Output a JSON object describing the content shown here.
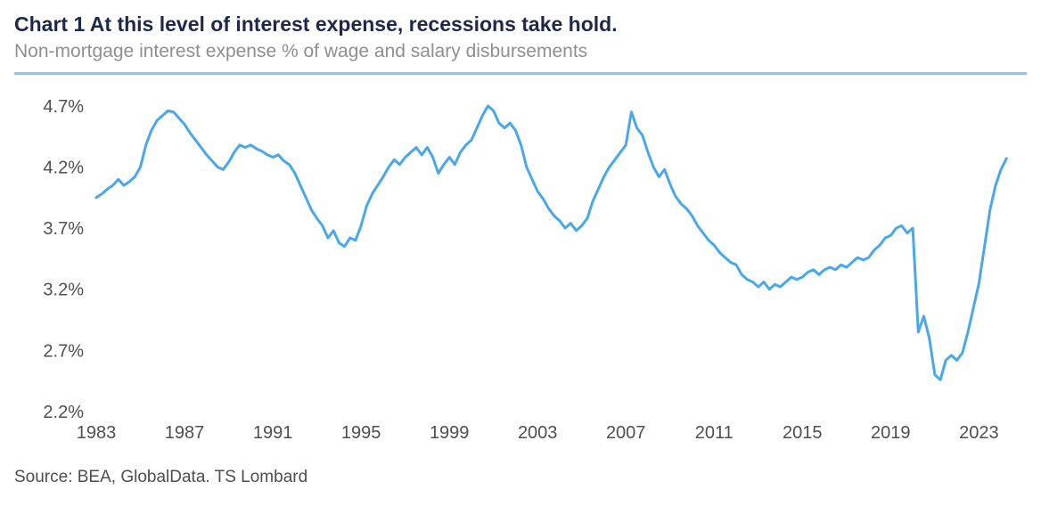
{
  "header": {
    "title": "Chart 1 At this level of interest expense, recessions take hold.",
    "subtitle": "Non-mortgage interest expense % of wage and salary disbursements"
  },
  "footer": {
    "source": "Source: BEA, GlobalData. TS Lombard"
  },
  "colors": {
    "title": "#1e2848",
    "subtitle": "#8f8f8f",
    "divider": "#85c9ef",
    "line": "#49a8e8",
    "tick_label": "#4f4f4f",
    "source": "#4d4d4d",
    "background": "#ffffff"
  },
  "chart_data": {
    "type": "line",
    "title": "Chart 1 At this level of interest expense, recessions take hold.",
    "subtitle": "Non-mortgage interest expense % of wage and salary disbursements",
    "xlabel": "",
    "ylabel": "",
    "grid": false,
    "legend": "none",
    "ylim": [
      2.2,
      4.75
    ],
    "xlim": [
      1983,
      2024.6
    ],
    "y_ticks": [
      "4.7%",
      "4.2%",
      "3.7%",
      "3.2%",
      "2.7%",
      "2.2%"
    ],
    "y_tick_values": [
      4.7,
      4.2,
      3.7,
      3.2,
      2.7,
      2.2
    ],
    "x_ticks": [
      1983,
      1987,
      1991,
      1995,
      1999,
      2003,
      2007,
      2011,
      2015,
      2019,
      2023
    ],
    "series": [
      {
        "name": "Non-mortgage interest expense % of wage and salary disbursements",
        "x_start": 1983.0,
        "x_step": 0.25,
        "values": [
          3.95,
          3.98,
          4.02,
          4.05,
          4.1,
          4.05,
          4.08,
          4.12,
          4.2,
          4.38,
          4.5,
          4.58,
          4.62,
          4.66,
          4.65,
          4.6,
          4.55,
          4.48,
          4.42,
          4.36,
          4.3,
          4.25,
          4.2,
          4.18,
          4.24,
          4.32,
          4.38,
          4.36,
          4.38,
          4.35,
          4.33,
          4.3,
          4.28,
          4.3,
          4.25,
          4.22,
          4.15,
          4.05,
          3.95,
          3.85,
          3.78,
          3.72,
          3.62,
          3.68,
          3.58,
          3.55,
          3.62,
          3.6,
          3.72,
          3.88,
          3.98,
          4.05,
          4.12,
          4.2,
          4.26,
          4.22,
          4.28,
          4.32,
          4.36,
          4.3,
          4.36,
          4.28,
          4.15,
          4.22,
          4.28,
          4.22,
          4.32,
          4.38,
          4.42,
          4.52,
          4.62,
          4.7,
          4.66,
          4.56,
          4.52,
          4.56,
          4.5,
          4.38,
          4.2,
          4.1,
          4.0,
          3.94,
          3.86,
          3.8,
          3.76,
          3.7,
          3.74,
          3.68,
          3.72,
          3.78,
          3.92,
          4.02,
          4.12,
          4.2,
          4.26,
          4.32,
          4.38,
          4.65,
          4.52,
          4.46,
          4.32,
          4.2,
          4.12,
          4.18,
          4.06,
          3.96,
          3.9,
          3.86,
          3.8,
          3.72,
          3.66,
          3.6,
          3.56,
          3.5,
          3.46,
          3.42,
          3.4,
          3.32,
          3.28,
          3.26,
          3.22,
          3.26,
          3.2,
          3.24,
          3.22,
          3.26,
          3.3,
          3.28,
          3.3,
          3.34,
          3.36,
          3.32,
          3.36,
          3.38,
          3.36,
          3.4,
          3.38,
          3.42,
          3.46,
          3.44,
          3.46,
          3.52,
          3.56,
          3.62,
          3.64,
          3.7,
          3.72,
          3.66,
          3.7,
          2.85,
          2.98,
          2.8,
          2.5,
          2.46,
          2.62,
          2.66,
          2.62,
          2.68,
          2.85,
          3.05,
          3.25,
          3.55,
          3.85,
          4.05,
          4.18,
          4.27
        ]
      }
    ]
  }
}
